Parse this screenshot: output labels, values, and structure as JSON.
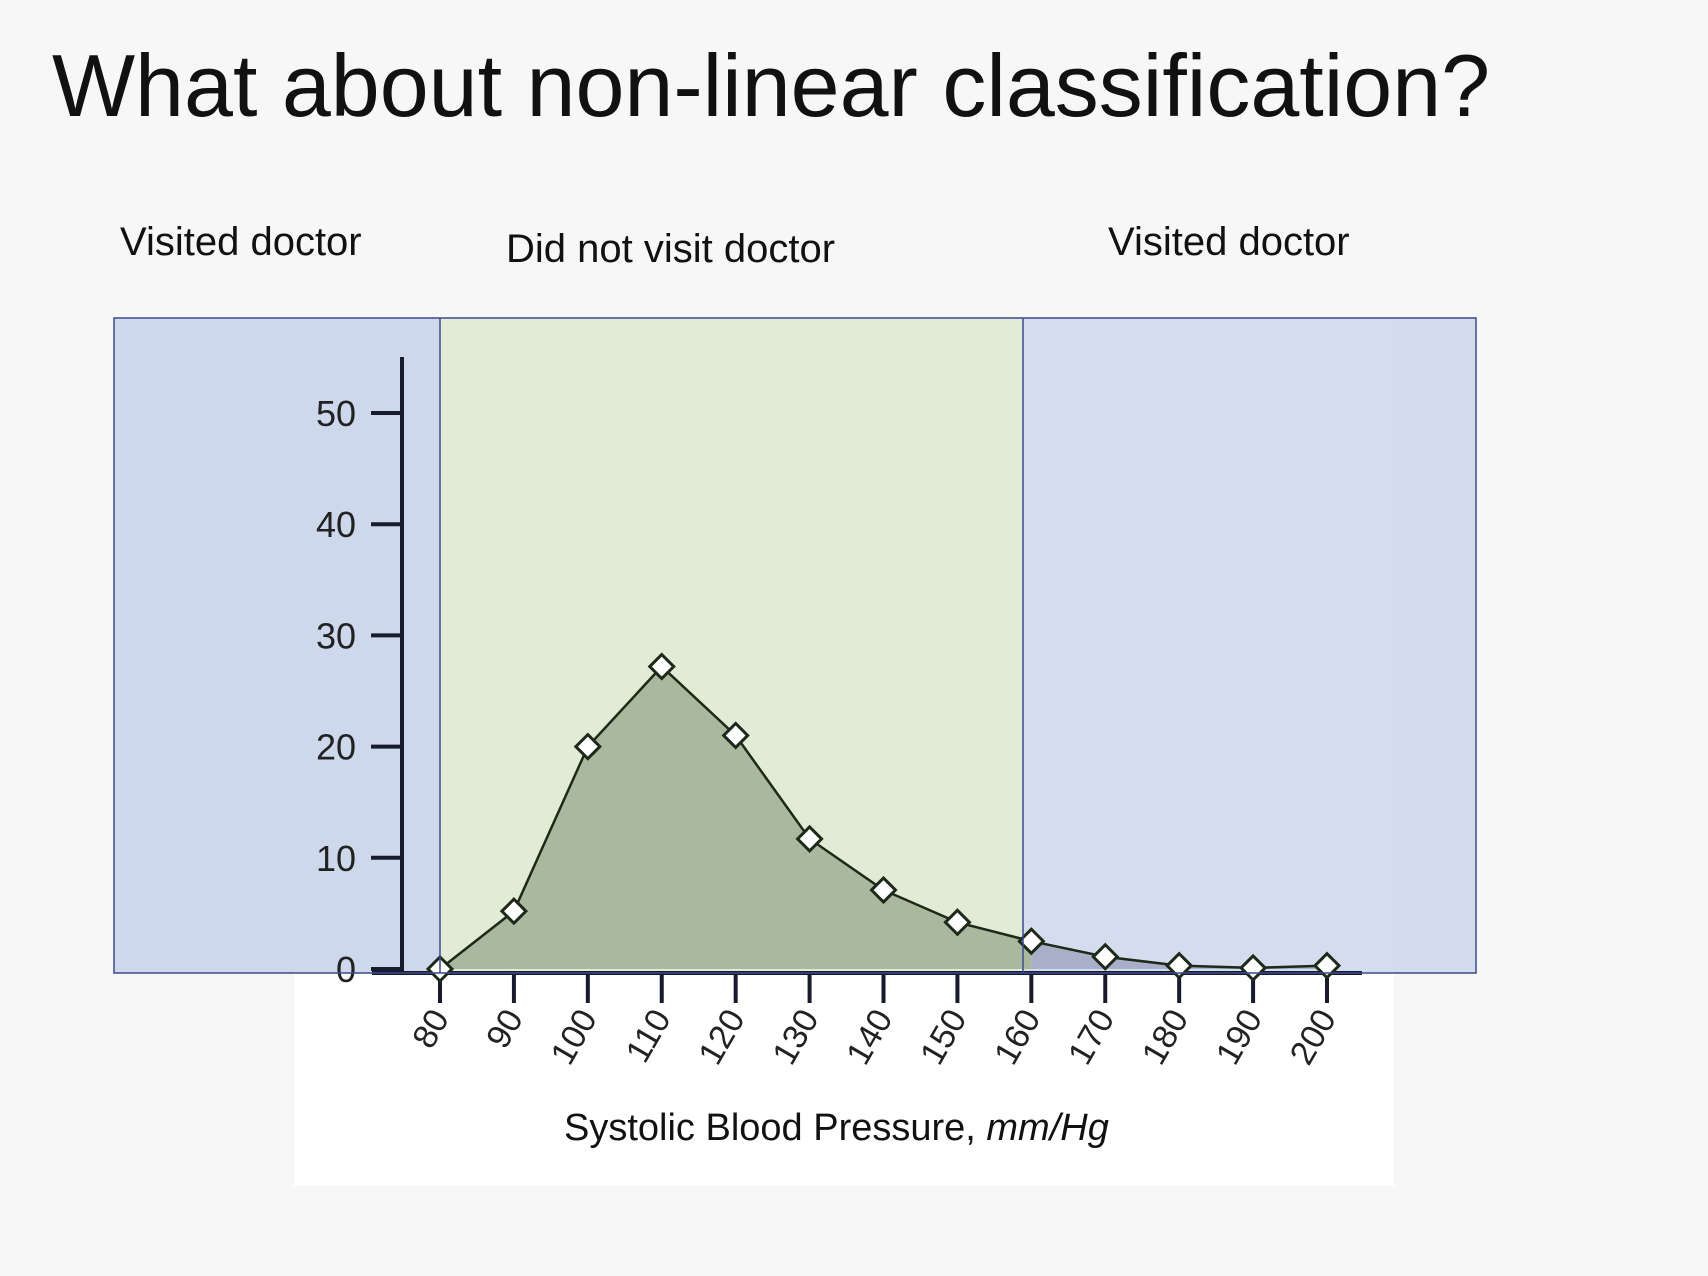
{
  "slide": {
    "title": "What about non-linear classification?"
  },
  "regions": {
    "left_label": "Visited doctor",
    "middle_label": "Did not visit doctor",
    "right_label": "Visited doctor"
  },
  "colors": {
    "visited_region": "#c9d4ea",
    "not_visited_region": "#dfead3",
    "green_area": "#aab99e",
    "blue_area": "#a7b0c8",
    "region_border": "#3b4a8c",
    "axis": "#1a1a2e"
  },
  "chart_data": {
    "type": "area",
    "xlabel": "Systolic Blood Pressure, ",
    "xlabel_unit": "mm/Hg",
    "ylabel": "",
    "x": [
      80,
      90,
      100,
      110,
      120,
      130,
      140,
      150,
      160,
      170,
      180,
      190,
      200
    ],
    "values": [
      0,
      5.2,
      20,
      27.2,
      21,
      11.7,
      7.1,
      4.2,
      2.5,
      1.1,
      0.3,
      0.1,
      0.3
    ],
    "y_ticks": [
      0,
      10,
      20,
      30,
      40,
      50
    ],
    "x_ticks": [
      80,
      90,
      100,
      110,
      120,
      130,
      140,
      150,
      160,
      170,
      180,
      190,
      200
    ],
    "xlim": [
      80,
      200
    ],
    "ylim": [
      0,
      50
    ],
    "marker": "open-diamond",
    "grid": false,
    "shaded_regions": [
      {
        "from": 80,
        "to": 160,
        "class": "Did not visit doctor"
      },
      {
        "from": 160,
        "to": 200,
        "class": "Visited doctor"
      }
    ]
  }
}
